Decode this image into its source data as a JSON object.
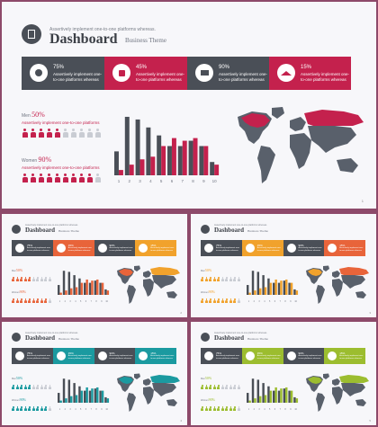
{
  "main": {
    "tagline": "Assertively implement one-to-one platforms whereas.",
    "title": "Dashboard",
    "subtitle": "Business Theme",
    "banner": [
      {
        "pct": "75%",
        "text": "Assertively implement one-to-one platforms whereas",
        "color": "#4a4f57",
        "icon": "money-bag-icon"
      },
      {
        "pct": "45%",
        "text": "Assertively implement one-to-one platforms whereas",
        "color": "#c4214d",
        "icon": "like-icon"
      },
      {
        "pct": "90%",
        "text": "Assertively implement one-to-one platforms whereas",
        "color": "#4a4f57",
        "icon": "folder-icon"
      },
      {
        "pct": "15%",
        "text": "Assertively implement one-to-one platforms whereas",
        "color": "#c4214d",
        "icon": "graduation-cap-icon"
      }
    ],
    "stat1": {
      "prefix": "Men",
      "pct": "50%",
      "text": "Assertively implement one-to-one platforms"
    },
    "stat2": {
      "prefix": "Women",
      "pct": "90%",
      "text": "Assertively implement one-to-one platforms"
    },
    "page_number": "1"
  },
  "chart_data": {
    "type": "bar",
    "categories": [
      "1",
      "2",
      "3",
      "4",
      "5",
      "6",
      "7",
      "8",
      "9",
      "10"
    ],
    "series": [
      {
        "values": [
          9,
          22,
          21,
          18,
          15,
          11,
          11,
          13,
          11,
          5
        ]
      },
      {
        "values": [
          2,
          4,
          6,
          7,
          11,
          14,
          13,
          14,
          11,
          4
        ]
      }
    ],
    "ylim": [
      0,
      23
    ],
    "grid": false
  },
  "variants": [
    {
      "accent": "#e8643a",
      "accent2": "#f1a22c",
      "title": "Dashboard",
      "subtitle": "Business Theme",
      "page_number": "2"
    },
    {
      "accent": "#f1a22c",
      "accent2": "#e8643a",
      "title": "Dashboard",
      "subtitle": "Business Theme",
      "page_number": "3"
    },
    {
      "accent": "#1b9aa0",
      "accent2": "#1b9aa0",
      "title": "Dashboard",
      "subtitle": "Business Theme",
      "page_number": "4"
    },
    {
      "accent": "#9cbd2f",
      "accent2": "#9cbd2f",
      "title": "Dashboard",
      "subtitle": "Business Theme",
      "page_number": "5"
    }
  ],
  "colors": {
    "dark": "#4a4f57",
    "accent": "#c4214d",
    "light": "#c9ccd3",
    "map": "#59606b"
  }
}
